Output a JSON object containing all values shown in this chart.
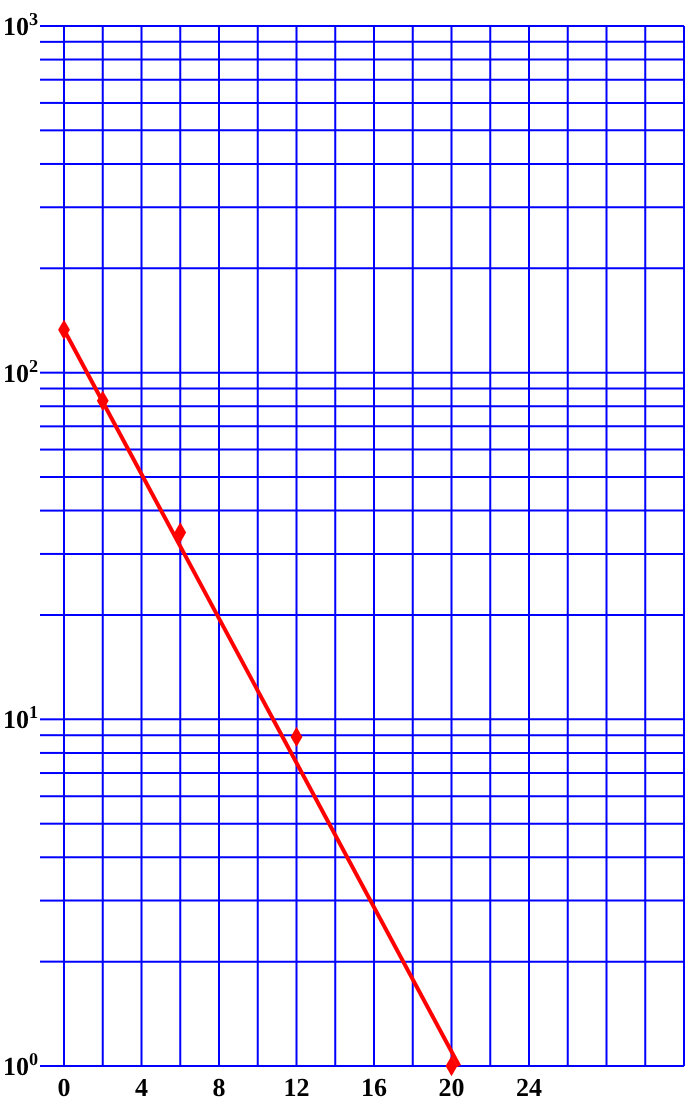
{
  "chart_data": {
    "type": "scatter",
    "log": "y",
    "grid": true,
    "marker": "diamond",
    "xlim": [
      0,
      32
    ],
    "xticks": [
      0,
      {
        "value": 2,
        "label": null
      },
      4,
      {
        "value": 6,
        "label": null
      },
      8,
      {
        "value": 10,
        "label": null
      },
      12,
      {
        "value": 14,
        "label": null
      },
      16,
      {
        "value": 18,
        "label": null
      },
      20,
      {
        "value": 22,
        "label": null
      },
      24,
      {
        "value": 26,
        "label": null
      },
      {
        "value": 28,
        "label": null
      },
      {
        "value": 30,
        "label": null
      },
      {
        "value": 32,
        "label": null
      }
    ],
    "ylim": [
      1,
      1000
    ],
    "yticks": [
      {
        "value": 1,
        "label": "10$^{0}$"
      },
      {
        "value": 2,
        "label": null
      },
      {
        "value": 3,
        "label": null
      },
      {
        "value": 4,
        "label": null
      },
      {
        "value": 5,
        "label": null
      },
      {
        "value": 6,
        "label": null
      },
      {
        "value": 7,
        "label": null
      },
      {
        "value": 8,
        "label": null
      },
      {
        "value": 9,
        "label": null
      },
      {
        "value": 10,
        "label": "10$^{1}$"
      },
      {
        "value": 20,
        "label": null
      },
      {
        "value": 30,
        "label": null
      },
      {
        "value": 40,
        "label": null
      },
      {
        "value": 50,
        "label": null
      },
      {
        "value": 60,
        "label": null
      },
      {
        "value": 70,
        "label": null
      },
      {
        "value": 80,
        "label": null
      },
      {
        "value": 90,
        "label": null
      },
      {
        "value": 100,
        "label": "10$^{2}$"
      },
      {
        "value": 200,
        "label": null
      },
      {
        "value": 300,
        "label": null
      },
      {
        "value": 400,
        "label": null
      },
      {
        "value": 500,
        "label": null
      },
      {
        "value": 600,
        "label": null
      },
      {
        "value": 700,
        "label": null
      },
      {
        "value": 800,
        "label": null
      },
      {
        "value": 900,
        "label": null
      },
      {
        "value": 1000,
        "label": "10$^{3}$"
      }
    ],
    "series": [
      {
        "color": "#ff0000",
        "x": [
          0,
          2,
          6,
          12,
          20
        ],
        "values": [
          133,
          83,
          34.6,
          8.9,
          1
        ]
      },
      {
        "type": "line",
        "color": "#ff0000",
        "marker": "none",
        "x": [
          0,
          20.4
        ],
        "values": [
          133,
          1
        ]
      }
    ]
  }
}
